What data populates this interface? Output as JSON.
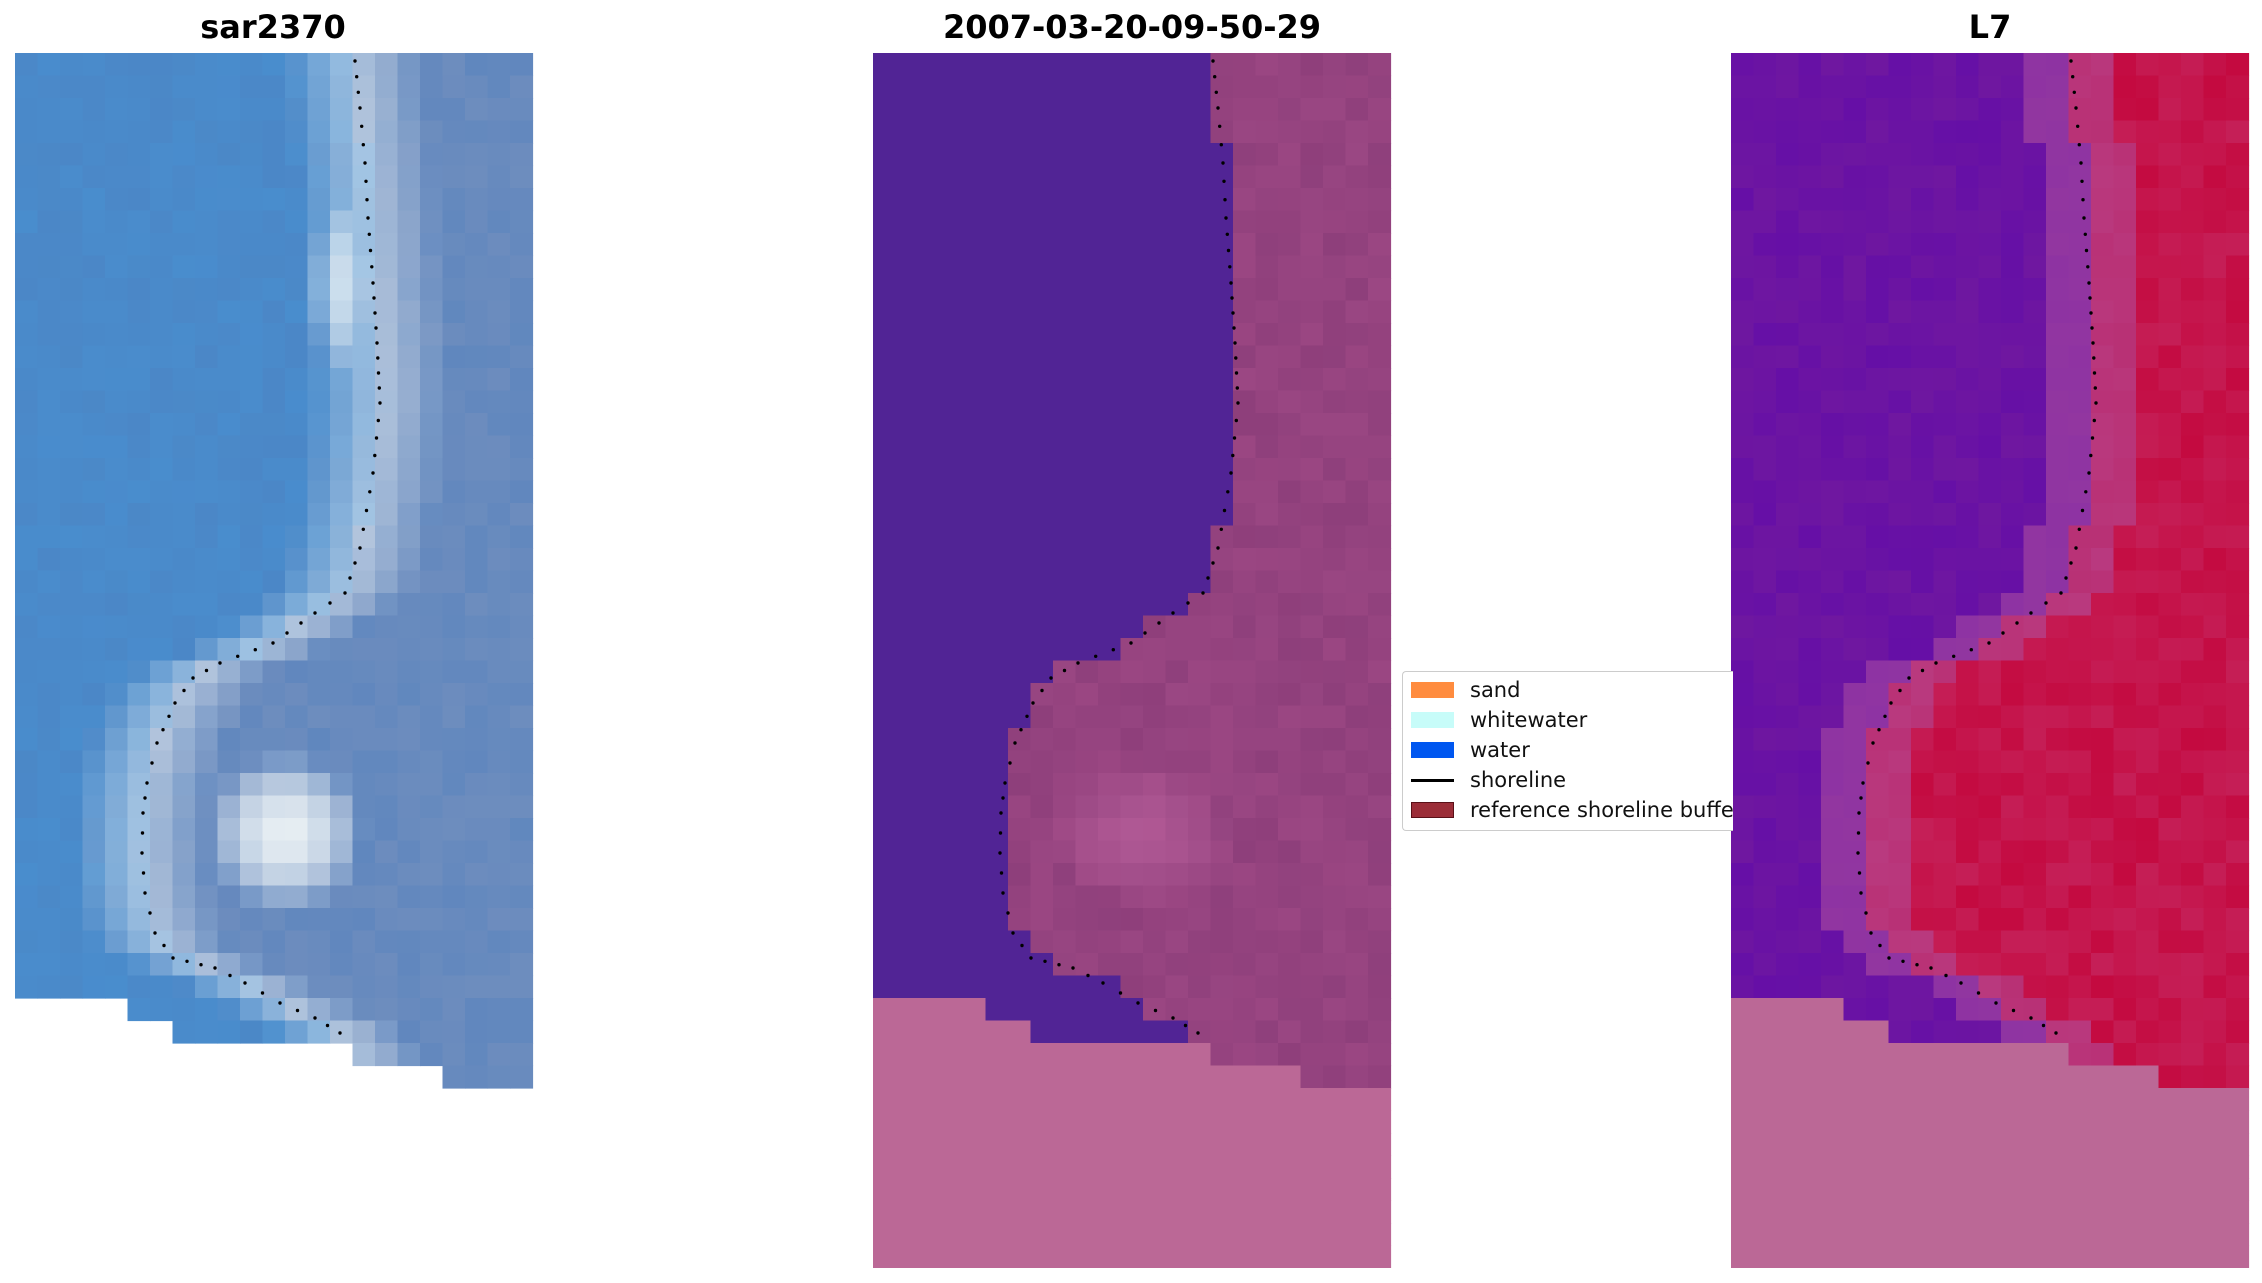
{
  "panels": [
    {
      "title": "sar2370",
      "kind": "rgb-image"
    },
    {
      "title": "2007-03-20-09-50-29",
      "kind": "classified-image"
    },
    {
      "title": "L7",
      "kind": "index-image"
    }
  ],
  "legend": {
    "items": [
      {
        "label": "sand",
        "color": "#ff8c3f",
        "type": "patch"
      },
      {
        "label": "whitewater",
        "color": "#c7fcf9",
        "type": "patch"
      },
      {
        "label": "water",
        "color": "#0057f0",
        "type": "patch"
      },
      {
        "label": "shoreline",
        "color": "#000000",
        "type": "line"
      },
      {
        "label": "reference shoreline buffer",
        "color": "#9b2d38",
        "type": "patch"
      }
    ]
  },
  "colors": {
    "nodata": "#bb6896",
    "water_class": "#512495",
    "land_class": "#8e3f7b",
    "index_low": "#6f17a0",
    "index_high": "#c40a40",
    "sea_blue": "#4e7fbe",
    "surf_white": "#eef4f6"
  }
}
